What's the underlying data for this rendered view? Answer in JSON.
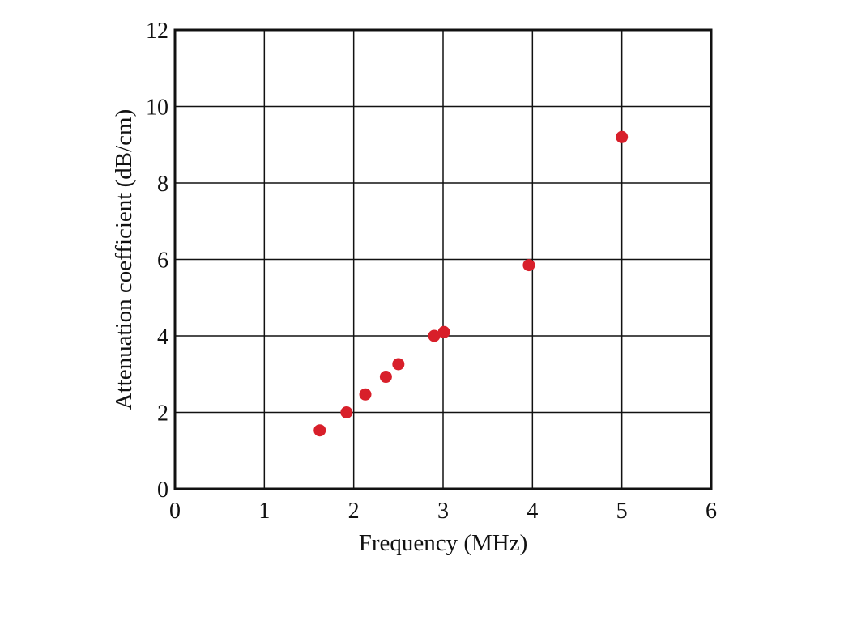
{
  "chart_data": {
    "type": "scatter",
    "title": "",
    "xlabel": "Frequency (MHz)",
    "ylabel": "Attenuation coefficient (dB/cm)",
    "xlim": [
      0,
      6
    ],
    "ylim": [
      0,
      12
    ],
    "x_ticks": [
      0,
      1,
      2,
      3,
      4,
      5,
      6
    ],
    "y_ticks": [
      0,
      2,
      4,
      6,
      8,
      10,
      12
    ],
    "grid": true,
    "marker_color": "#d81f2a",
    "points": [
      {
        "x": 1.62,
        "y": 1.53
      },
      {
        "x": 1.92,
        "y": 2.0
      },
      {
        "x": 2.13,
        "y": 2.47
      },
      {
        "x": 2.36,
        "y": 2.93
      },
      {
        "x": 2.5,
        "y": 3.26
      },
      {
        "x": 2.9,
        "y": 4.0
      },
      {
        "x": 3.01,
        "y": 4.1
      },
      {
        "x": 3.96,
        "y": 5.85
      },
      {
        "x": 5.0,
        "y": 9.2
      }
    ]
  }
}
